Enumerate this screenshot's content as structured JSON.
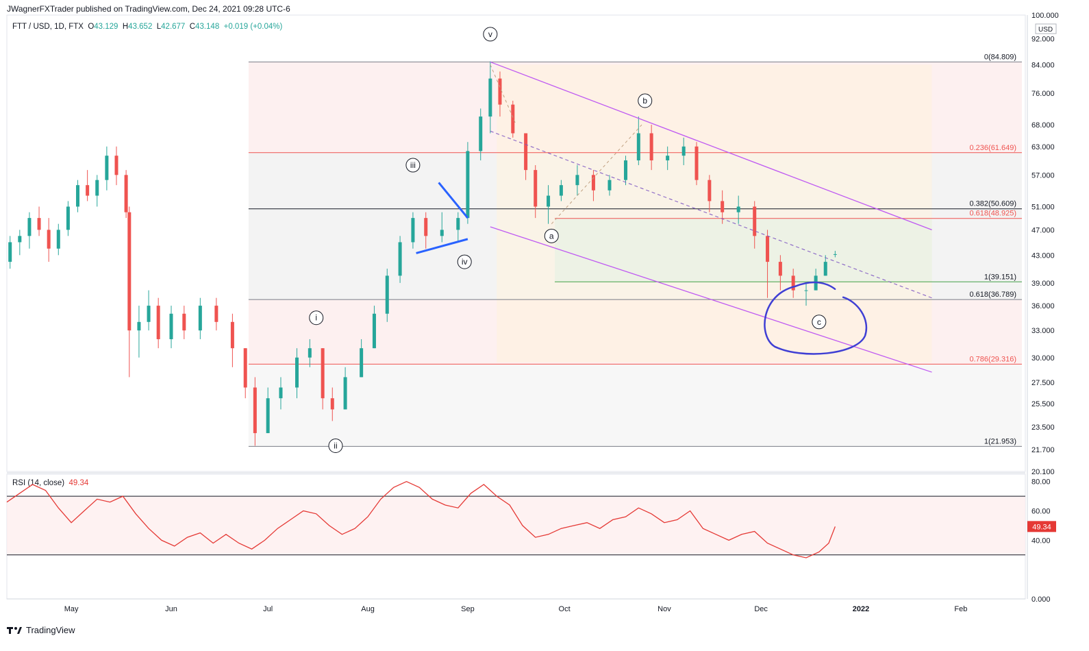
{
  "publisher_line": "JWagnerFXTrader published on TradingView.com, Dec 24, 2021 09:28 UTC-6",
  "legend": {
    "symbol": "FTT / USD, 1D, FTX",
    "open_label": "O",
    "open": "43.129",
    "high_label": "H",
    "high": "43.652",
    "low_label": "L",
    "low": "42.677",
    "close_label": "C",
    "close": "43.148",
    "change": "+0.019 (+0.04%)"
  },
  "rsi_legend": {
    "label": "RSI (14, close)",
    "value": "49.34"
  },
  "footer": {
    "brand": "TradingView"
  },
  "colors": {
    "up": "#26a69a",
    "down": "#ef5350",
    "rsi": "#e53935",
    "channel": "#bf5af2",
    "annotation": "#2962ff",
    "circle": "#3f3fd4"
  },
  "chart_data": [
    {
      "type": "candlestick",
      "title": "FTT / USD, 1D, FTX",
      "currency": "USD",
      "y_scale": "log",
      "ylim": [
        20.1,
        100
      ],
      "y_ticks": [
        "100.000",
        "92.000",
        "84.000",
        "76.000",
        "68.000",
        "63.000",
        "57.000",
        "51.000",
        "47.000",
        "43.000",
        "39.000",
        "36.000",
        "33.000",
        "30.000",
        "27.500",
        "25.500",
        "23.500",
        "21.700",
        "20.100"
      ],
      "x_ticks": [
        "May",
        "Jun",
        "Jul",
        "Aug",
        "Sep",
        "Oct",
        "Nov",
        "Dec",
        "2022",
        "Feb"
      ],
      "x_range": [
        "2021-04-11",
        "2022-02-21"
      ],
      "ohlc_approx": [
        [
          "2021-04-12",
          42,
          46,
          41,
          45
        ],
        [
          "2021-04-15",
          45,
          47,
          43,
          46
        ],
        [
          "2021-04-18",
          46,
          50,
          44,
          49
        ],
        [
          "2021-04-21",
          49,
          51,
          46,
          47
        ],
        [
          "2021-04-24",
          47,
          49,
          42,
          44
        ],
        [
          "2021-04-27",
          44,
          48,
          43,
          47
        ],
        [
          "2021-04-30",
          47,
          52,
          46,
          51
        ],
        [
          "2021-05-03",
          51,
          56,
          50,
          55
        ],
        [
          "2021-05-06",
          55,
          58,
          52,
          53
        ],
        [
          "2021-05-09",
          53,
          57,
          51,
          56
        ],
        [
          "2021-05-12",
          56,
          63,
          54,
          61
        ],
        [
          "2021-05-15",
          61,
          63,
          55,
          57
        ],
        [
          "2021-05-18",
          57,
          58,
          49,
          50
        ],
        [
          "2021-05-19",
          50,
          51,
          28,
          33
        ],
        [
          "2021-05-22",
          33,
          36,
          30,
          34
        ],
        [
          "2021-05-25",
          34,
          38,
          33,
          36
        ],
        [
          "2021-05-28",
          36,
          37,
          31,
          32
        ],
        [
          "2021-06-01",
          32,
          36,
          31,
          35
        ],
        [
          "2021-06-05",
          35,
          36,
          32,
          33
        ],
        [
          "2021-06-10",
          33,
          37,
          32,
          36
        ],
        [
          "2021-06-15",
          36,
          37,
          33,
          34
        ],
        [
          "2021-06-20",
          34,
          35,
          29,
          31
        ],
        [
          "2021-06-24",
          31,
          31,
          26,
          27
        ],
        [
          "2021-06-27",
          27,
          28,
          22,
          23
        ],
        [
          "2021-07-01",
          23,
          27,
          23,
          26
        ],
        [
          "2021-07-05",
          26,
          28,
          25,
          27
        ],
        [
          "2021-07-10",
          27,
          31,
          26,
          30
        ],
        [
          "2021-07-14",
          30,
          32,
          29,
          31
        ],
        [
          "2021-07-18",
          31,
          31,
          25,
          26
        ],
        [
          "2021-07-21",
          26,
          27,
          24,
          25
        ],
        [
          "2021-07-25",
          25,
          29,
          25,
          28
        ],
        [
          "2021-07-30",
          28,
          32,
          28,
          31
        ],
        [
          "2021-08-03",
          31,
          36,
          31,
          35
        ],
        [
          "2021-08-07",
          35,
          41,
          34,
          40
        ],
        [
          "2021-08-11",
          40,
          46,
          39,
          45
        ],
        [
          "2021-08-15",
          45,
          50,
          44,
          49
        ],
        [
          "2021-08-19",
          49,
          50,
          44,
          46
        ],
        [
          "2021-08-24",
          46,
          50,
          45,
          47
        ],
        [
          "2021-08-29",
          47,
          50,
          45,
          49
        ],
        [
          "2021-09-01",
          49,
          64,
          48,
          62
        ],
        [
          "2021-09-05",
          62,
          72,
          60,
          70
        ],
        [
          "2021-09-08",
          70,
          85,
          66,
          80
        ],
        [
          "2021-09-11",
          80,
          82,
          70,
          73
        ],
        [
          "2021-09-15",
          73,
          74,
          65,
          66
        ],
        [
          "2021-09-19",
          66,
          66,
          56,
          58
        ],
        [
          "2021-09-22",
          58,
          59,
          49,
          51
        ],
        [
          "2021-09-26",
          51,
          55,
          48,
          53
        ],
        [
          "2021-09-30",
          53,
          56,
          52,
          55
        ],
        [
          "2021-10-05",
          55,
          59,
          53,
          57
        ],
        [
          "2021-10-10",
          57,
          58,
          52,
          54
        ],
        [
          "2021-10-15",
          54,
          57,
          53,
          56
        ],
        [
          "2021-10-20",
          56,
          61,
          55,
          60
        ],
        [
          "2021-10-24",
          60,
          70,
          59,
          66
        ],
        [
          "2021-10-28",
          66,
          68,
          58,
          60
        ],
        [
          "2021-11-02",
          60,
          63,
          58,
          61
        ],
        [
          "2021-11-07",
          61,
          65,
          59,
          63
        ],
        [
          "2021-11-11",
          63,
          64,
          55,
          56
        ],
        [
          "2021-11-15",
          56,
          57,
          50,
          52
        ],
        [
          "2021-11-19",
          52,
          54,
          48,
          50
        ],
        [
          "2021-11-24",
          50,
          53,
          48,
          51
        ],
        [
          "2021-11-29",
          51,
          52,
          44,
          46
        ],
        [
          "2021-12-03",
          46,
          47,
          37,
          42
        ],
        [
          "2021-12-07",
          42,
          43,
          38,
          40
        ],
        [
          "2021-12-11",
          40,
          41,
          37,
          38
        ],
        [
          "2021-12-15",
          38,
          39,
          36,
          38
        ],
        [
          "2021-12-18",
          38,
          41,
          38,
          40
        ],
        [
          "2021-12-21",
          40,
          43,
          40,
          42
        ],
        [
          "2021-12-24",
          43.129,
          43.652,
          42.677,
          43.148
        ]
      ],
      "fibonacci_left": [
        {
          "level": "0",
          "price": 84.809,
          "label": "0(84.809)"
        },
        {
          "level": "0.236",
          "price": 61.649,
          "label": "0.236(61.649)"
        },
        {
          "level": "0.382",
          "price": 50.609,
          "label": "0.382(50.609)"
        },
        {
          "level": "0.618",
          "price": 36.789,
          "label": "0.618(36.789)"
        },
        {
          "level": "0.786",
          "price": 29.316,
          "label": "0.786(29.316)"
        },
        {
          "level": "1",
          "price": 21.953,
          "label": "1(21.953)"
        }
      ],
      "fibonacci_extension": [
        {
          "level": "0.618",
          "price": 48.925,
          "label": "0.618(48.925)"
        },
        {
          "level": "1",
          "price": 39.151,
          "label": "1(39.151)"
        }
      ],
      "wave_labels": [
        {
          "text": "i",
          "date": "2021-07-16",
          "price": 34.5
        },
        {
          "text": "ii",
          "date": "2021-07-22",
          "price": 22.0
        },
        {
          "text": "iii",
          "date": "2021-08-15",
          "price": 59.0
        },
        {
          "text": "iv",
          "date": "2021-08-31",
          "price": 42.0
        },
        {
          "text": "v",
          "date": "2021-09-08",
          "price": 93.5
        },
        {
          "text": "a",
          "date": "2021-09-27",
          "price": 46.0
        },
        {
          "text": "b",
          "date": "2021-10-26",
          "price": 74.0
        },
        {
          "text": "c",
          "date": "2021-12-19",
          "price": 34.0
        }
      ],
      "channel": {
        "upper": [
          [
            "2021-09-08",
            84.8
          ],
          [
            "2022-01-23",
            47
          ]
        ],
        "lower": [
          [
            "2021-09-08",
            47.5
          ],
          [
            "2022-01-23",
            28.5
          ]
        ],
        "median": [
          [
            "2021-09-08",
            66.5
          ],
          [
            "2022-01-23",
            37
          ]
        ]
      }
    },
    {
      "type": "line",
      "title": "RSI (14, close)",
      "ylim": [
        0,
        85
      ],
      "y_ticks": [
        "80.00",
        "60.00",
        "40.00",
        "0.000"
      ],
      "bands": [
        70,
        30
      ],
      "last_value": 49.34,
      "x": [
        "2021-04-11",
        "2021-04-15",
        "2021-04-19",
        "2021-04-23",
        "2021-04-27",
        "2021-05-01",
        "2021-05-05",
        "2021-05-09",
        "2021-05-13",
        "2021-05-17",
        "2021-05-21",
        "2021-05-25",
        "2021-05-29",
        "2021-06-02",
        "2021-06-06",
        "2021-06-10",
        "2021-06-14",
        "2021-06-18",
        "2021-06-22",
        "2021-06-26",
        "2021-06-30",
        "2021-07-04",
        "2021-07-08",
        "2021-07-12",
        "2021-07-16",
        "2021-07-20",
        "2021-07-24",
        "2021-07-28",
        "2021-08-01",
        "2021-08-05",
        "2021-08-09",
        "2021-08-13",
        "2021-08-17",
        "2021-08-21",
        "2021-08-25",
        "2021-08-29",
        "2021-09-02",
        "2021-09-06",
        "2021-09-10",
        "2021-09-14",
        "2021-09-18",
        "2021-09-22",
        "2021-09-26",
        "2021-09-30",
        "2021-10-04",
        "2021-10-08",
        "2021-10-12",
        "2021-10-16",
        "2021-10-20",
        "2021-10-24",
        "2021-10-28",
        "2021-11-01",
        "2021-11-05",
        "2021-11-09",
        "2021-11-13",
        "2021-11-17",
        "2021-11-21",
        "2021-11-25",
        "2021-11-29",
        "2021-12-03",
        "2021-12-07",
        "2021-12-11",
        "2021-12-15",
        "2021-12-19",
        "2021-12-22",
        "2021-12-24"
      ],
      "values": [
        66,
        72,
        78,
        74,
        62,
        52,
        60,
        68,
        66,
        70,
        58,
        48,
        40,
        36,
        42,
        45,
        38,
        44,
        38,
        34,
        40,
        48,
        54,
        60,
        58,
        50,
        44,
        48,
        56,
        68,
        76,
        80,
        76,
        68,
        64,
        62,
        72,
        78,
        70,
        64,
        50,
        42,
        44,
        48,
        50,
        52,
        48,
        54,
        56,
        62,
        58,
        52,
        54,
        60,
        48,
        44,
        40,
        44,
        46,
        38,
        34,
        30,
        28,
        32,
        38,
        49.34
      ]
    }
  ]
}
